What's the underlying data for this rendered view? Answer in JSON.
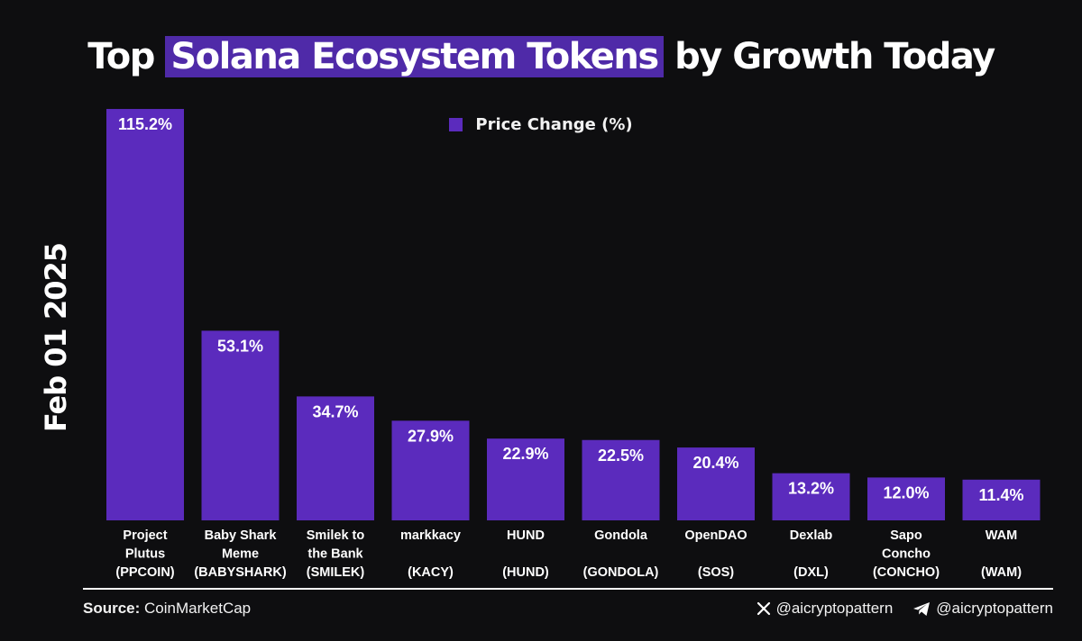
{
  "title": {
    "prefix": "Top",
    "highlight": "Solana Ecosystem Tokens",
    "suffix": "by Growth Today"
  },
  "date_label": "Feb 01 2025",
  "footer": {
    "source_label": "Source:",
    "source_value": "CoinMarketCap",
    "x_handle": "@aicryptopattern",
    "telegram_handle": "@aicryptopattern"
  },
  "colors": {
    "bar": "#5b2bbd",
    "highlight": "#4f2aa8",
    "background": "#0e0e10"
  },
  "icons": [
    "x-logo-icon",
    "telegram-icon"
  ],
  "chart_data": {
    "type": "bar",
    "title": "Top Solana Ecosystem Tokens by Growth Today",
    "legend": "top-center",
    "grid": false,
    "ylim": [
      0,
      120
    ],
    "series": [
      {
        "name": "Price Change (%)",
        "values": [
          115.2,
          53.1,
          34.7,
          27.9,
          22.9,
          22.5,
          20.4,
          13.2,
          12.0,
          11.4
        ]
      }
    ],
    "categories": [
      "Project Plutus (PPCOIN)",
      "Baby Shark Meme (BABYSHARK)",
      "Smilek to the Bank (SMILEK)",
      "markkacy (KACY)",
      "HUND (HUND)",
      "Gondola (GONDOLA)",
      "OpenDAO (SOS)",
      "Dexlab (DXL)",
      "Sapo Concho (CONCHO)",
      "WAM (WAM)"
    ],
    "category_lines": [
      [
        "Project",
        "Plutus",
        "(PPCOIN)"
      ],
      [
        "Baby Shark",
        "Meme",
        "(BABYSHARK)"
      ],
      [
        "Smilek to",
        "the Bank",
        "(SMILEK)"
      ],
      [
        "markkacy",
        "",
        "(KACY)"
      ],
      [
        "HUND",
        "",
        "(HUND)"
      ],
      [
        "Gondola",
        "",
        "(GONDOLA)"
      ],
      [
        "OpenDAO",
        "",
        "(SOS)"
      ],
      [
        "Dexlab",
        "",
        "(DXL)"
      ],
      [
        "Sapo",
        "Concho",
        "(CONCHO)"
      ],
      [
        "WAM",
        "",
        "(WAM)"
      ]
    ],
    "data_labels": [
      "115.2%",
      "53.1%",
      "34.7%",
      "27.9%",
      "22.9%",
      "22.5%",
      "20.4%",
      "13.2%",
      "12.0%",
      "11.4%"
    ]
  }
}
